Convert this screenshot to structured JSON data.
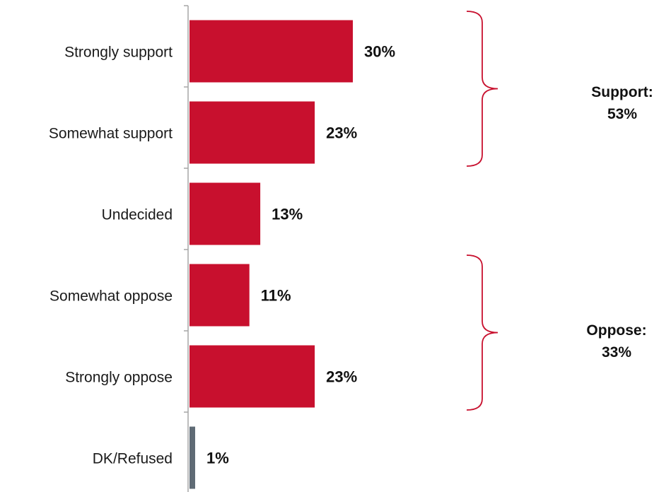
{
  "chart_data": {
    "type": "bar",
    "orientation": "horizontal",
    "categories": [
      "Strongly support",
      "Somewhat support",
      "Undecided",
      "Somewhat oppose",
      "Strongly oppose",
      "DK/Refused"
    ],
    "values": [
      30,
      23,
      13,
      11,
      23,
      1
    ],
    "value_labels": [
      "30%",
      "23%",
      "13%",
      "11%",
      "23%",
      "1%"
    ],
    "bar_colors": [
      "#c8102e",
      "#c8102e",
      "#c8102e",
      "#c8102e",
      "#c8102e",
      "#5f6b75"
    ],
    "xlim": [
      0,
      60
    ],
    "grid": false,
    "groups": [
      {
        "title": "Support:",
        "total": "53%",
        "categories": [
          "Strongly support",
          "Somewhat support"
        ],
        "bracket_color": "#c8102e"
      },
      {
        "title": "Oppose:",
        "total": "33%",
        "categories": [
          "Somewhat oppose",
          "Strongly oppose"
        ],
        "bracket_color": "#c8102e"
      }
    ]
  }
}
